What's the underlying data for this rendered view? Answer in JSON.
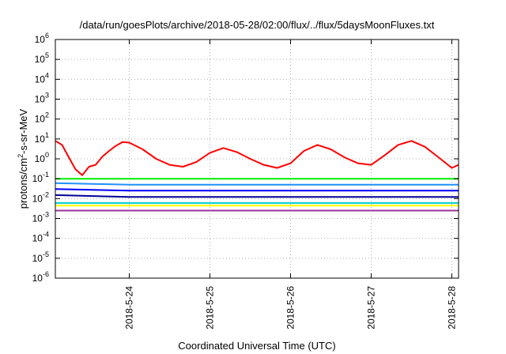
{
  "chart_data": {
    "type": "line",
    "title": "/data/run/goesPlots/archive/2018-05-28/02:00/flux/../flux/5daysMoonFluxes.txt",
    "xlabel": "Coordinated Universal Time (UTC)",
    "ylabel": {
      "prefix": "protons/cm",
      "sup": "2",
      "suffix": "-s-sr-MeV"
    },
    "y_scale": "log",
    "ylim": [
      1e-06,
      1000000.0
    ],
    "y_ticks": [
      {
        "base": "10",
        "exp": "6",
        "value": 1000000.0
      },
      {
        "base": "10",
        "exp": "5",
        "value": 100000.0
      },
      {
        "base": "10",
        "exp": "4",
        "value": 10000.0
      },
      {
        "base": "10",
        "exp": "3",
        "value": 1000.0
      },
      {
        "base": "10",
        "exp": "2",
        "value": 100.0
      },
      {
        "base": "10",
        "exp": "1",
        "value": 10.0
      },
      {
        "base": "10",
        "exp": "0",
        "value": 1.0
      },
      {
        "base": "10",
        "exp": "-1",
        "value": 0.1
      },
      {
        "base": "10",
        "exp": "-2",
        "value": 0.01
      },
      {
        "base": "10",
        "exp": "-3",
        "value": 0.001
      },
      {
        "base": "10",
        "exp": "-4",
        "value": 0.0001
      },
      {
        "base": "10",
        "exp": "-5",
        "value": 1e-05
      },
      {
        "base": "10",
        "exp": "-6",
        "value": 1e-06
      }
    ],
    "xlim": [
      "2018-05-23T02:00",
      "2018-05-28T02:00"
    ],
    "x_ticks": [
      {
        "label": "2018-5-24",
        "value": "2018-05-24T00:00"
      },
      {
        "label": "2018-5-25",
        "value": "2018-05-25T00:00"
      },
      {
        "label": "2018-5-26",
        "value": "2018-05-26T00:00"
      },
      {
        "label": "2018-5-27",
        "value": "2018-05-27T00:00"
      },
      {
        "label": "2018-5-28",
        "value": "2018-05-28T00:00"
      }
    ],
    "grid": true,
    "series": [
      {
        "color": "#ff0000",
        "x": [
          "2018-05-23T02:00",
          "2018-05-23T04:00",
          "2018-05-23T06:00",
          "2018-05-23T08:00",
          "2018-05-23T10:00",
          "2018-05-23T12:00",
          "2018-05-23T14:00",
          "2018-05-23T16:00",
          "2018-05-23T18:00",
          "2018-05-23T20:00",
          "2018-05-23T22:00",
          "2018-05-24T00:00",
          "2018-05-24T04:00",
          "2018-05-24T08:00",
          "2018-05-24T12:00",
          "2018-05-24T16:00",
          "2018-05-24T20:00",
          "2018-05-25T00:00",
          "2018-05-25T04:00",
          "2018-05-25T08:00",
          "2018-05-25T12:00",
          "2018-05-25T16:00",
          "2018-05-25T20:00",
          "2018-05-26T00:00",
          "2018-05-26T04:00",
          "2018-05-26T08:00",
          "2018-05-26T12:00",
          "2018-05-26T16:00",
          "2018-05-26T20:00",
          "2018-05-27T00:00",
          "2018-05-27T04:00",
          "2018-05-27T08:00",
          "2018-05-27T12:00",
          "2018-05-27T16:00",
          "2018-05-27T20:00",
          "2018-05-28T00:00",
          "2018-05-28T02:00"
        ],
        "values": [
          8,
          5,
          1.2,
          0.3,
          0.15,
          0.4,
          0.5,
          1.3,
          2.5,
          4.5,
          7,
          6.5,
          3,
          1,
          0.5,
          0.4,
          0.7,
          2,
          3.5,
          2.2,
          1,
          0.5,
          0.35,
          0.6,
          2.5,
          5,
          3,
          1.2,
          0.6,
          0.5,
          1.5,
          5,
          8,
          4,
          1.2,
          0.35,
          0.5
        ]
      },
      {
        "color": "#00ee00",
        "x": [
          "2018-05-23T02:00",
          "2018-05-24T00:00",
          "2018-05-25T00:00",
          "2018-05-26T00:00",
          "2018-05-27T00:00",
          "2018-05-28T00:00",
          "2018-05-28T02:00"
        ],
        "values": [
          0.1,
          0.1,
          0.1,
          0.1,
          0.1,
          0.1,
          0.1
        ]
      },
      {
        "color": "#1e90ff",
        "x": [
          "2018-05-23T02:00",
          "2018-05-24T00:00",
          "2018-05-25T00:00",
          "2018-05-26T00:00",
          "2018-05-27T00:00",
          "2018-05-28T00:00",
          "2018-05-28T02:00"
        ],
        "values": [
          0.06,
          0.05,
          0.05,
          0.05,
          0.05,
          0.05,
          0.05
        ]
      },
      {
        "color": "#0000ff",
        "x": [
          "2018-05-23T02:00",
          "2018-05-24T00:00",
          "2018-05-25T00:00",
          "2018-05-26T00:00",
          "2018-05-27T00:00",
          "2018-05-28T00:00",
          "2018-05-28T02:00"
        ],
        "values": [
          0.03,
          0.025,
          0.025,
          0.025,
          0.025,
          0.025,
          0.025
        ]
      },
      {
        "color": "#000099",
        "x": [
          "2018-05-23T02:00",
          "2018-05-24T00:00",
          "2018-05-25T00:00",
          "2018-05-26T00:00",
          "2018-05-27T00:00",
          "2018-05-28T00:00",
          "2018-05-28T02:00"
        ],
        "values": [
          0.015,
          0.012,
          0.012,
          0.012,
          0.012,
          0.012,
          0.012
        ]
      },
      {
        "color": "#00cccc",
        "x": [
          "2018-05-23T02:00",
          "2018-05-24T00:00",
          "2018-05-25T00:00",
          "2018-05-26T00:00",
          "2018-05-27T00:00",
          "2018-05-28T00:00",
          "2018-05-28T02:00"
        ],
        "values": [
          0.006,
          0.006,
          0.006,
          0.006,
          0.006,
          0.006,
          0.006
        ]
      },
      {
        "color": "#ffff00",
        "x": [
          "2018-05-23T02:00",
          "2018-05-24T00:00",
          "2018-05-25T00:00",
          "2018-05-26T00:00",
          "2018-05-27T00:00",
          "2018-05-28T00:00",
          "2018-05-28T02:00"
        ],
        "values": [
          0.0045,
          0.0045,
          0.0045,
          0.0045,
          0.0045,
          0.0045,
          0.0045
        ]
      },
      {
        "color": "#993399",
        "x": [
          "2018-05-23T02:00",
          "2018-05-24T00:00",
          "2018-05-25T00:00",
          "2018-05-26T00:00",
          "2018-05-27T00:00",
          "2018-05-28T00:00",
          "2018-05-28T02:00"
        ],
        "values": [
          0.0025,
          0.0025,
          0.0025,
          0.0025,
          0.0025,
          0.0025,
          0.0025
        ]
      }
    ]
  }
}
